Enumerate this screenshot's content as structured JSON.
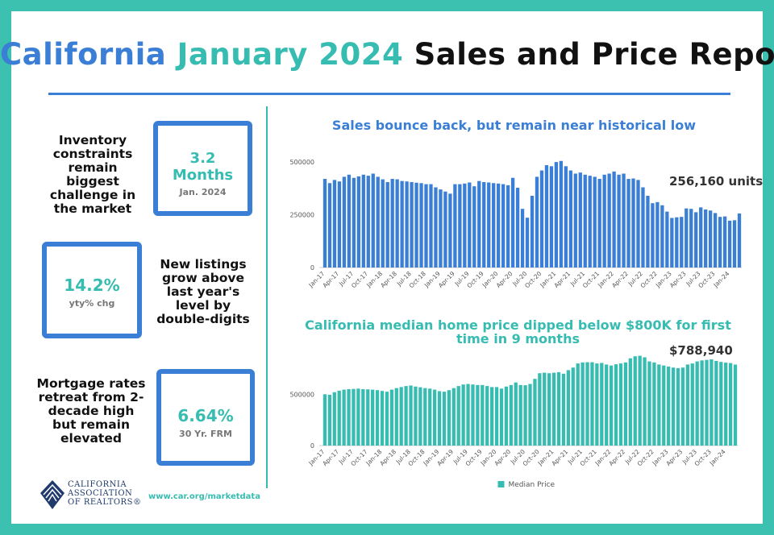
{
  "header": {
    "title_part1": "California",
    "title_part2": "January 2024",
    "title_part3": "Sales and Price Report"
  },
  "panels": {
    "inventory": {
      "text": "Inventory constraints remain biggest challenge in the market",
      "value": "3.2 Months",
      "sub": "Jan. 2024"
    },
    "listings": {
      "text": "New listings grow above last year's level by double-digits",
      "value": "14.2%",
      "sub": "yty% chg"
    },
    "mortgage": {
      "text": "Mortgage rates retreat from 2-decade high but remain elevated",
      "value": "6.64%",
      "sub": "30 Yr. FRM"
    }
  },
  "footer": {
    "url": "www.car.org/marketdata",
    "logo_line1": "CALIFORNIA",
    "logo_line2": "ASSOCIATION",
    "logo_line3": "OF REALTORS®"
  },
  "colors": {
    "blue": "#3a7fd5",
    "teal": "#36bcb0",
    "frame": "#3cc0b0"
  },
  "chart_data": [
    {
      "type": "bar",
      "title": "Sales bounce back, but remain near historical low",
      "annotation": "256,160 units",
      "ylim": [
        0,
        550000
      ],
      "yticks": [
        0,
        250000,
        500000
      ],
      "ytick_labels": [
        "0",
        "250000",
        "500000"
      ],
      "xtick_labels": [
        "Jan-17",
        "Apr-17",
        "Jul-17",
        "Oct-17",
        "Jan-18",
        "Apr-18",
        "Jul-18",
        "Oct-18",
        "Jan-19",
        "Apr-19",
        "Jul-19",
        "Oct-19",
        "Jan-20",
        "Apr-20",
        "Jul-20",
        "Oct-20",
        "Jan-21",
        "Apr-21",
        "Jul-21",
        "Oct-21",
        "Jan-22",
        "Apr-22",
        "Jul-22",
        "Oct-22",
        "Jan-23",
        "Apr-23",
        "Jul-23",
        "Oct-23",
        "Jan-24"
      ],
      "color": "#3a7fd5",
      "values": [
        420000,
        400000,
        415000,
        408000,
        430000,
        440000,
        425000,
        432000,
        440000,
        435000,
        445000,
        430000,
        418000,
        405000,
        420000,
        418000,
        410000,
        408000,
        405000,
        402000,
        400000,
        395000,
        395000,
        380000,
        370000,
        360000,
        350000,
        395000,
        395000,
        398000,
        403000,
        385000,
        410000,
        405000,
        403000,
        400000,
        398000,
        395000,
        390000,
        425000,
        378000,
        278000,
        236000,
        340000,
        430000,
        460000,
        485000,
        480000,
        500000,
        505000,
        480000,
        460000,
        445000,
        450000,
        440000,
        435000,
        430000,
        420000,
        440000,
        445000,
        455000,
        440000,
        445000,
        420000,
        422000,
        415000,
        380000,
        340000,
        305000,
        310000,
        295000,
        265000,
        235000,
        238000,
        240000,
        280000,
        278000,
        262000,
        285000,
        275000,
        270000,
        258000,
        240000,
        242000,
        222000,
        224000,
        256160
      ]
    },
    {
      "type": "bar",
      "title": "California median home price dipped below $800K for first time in 9 months",
      "annotation": "$788,940",
      "ylim": [
        0,
        950000
      ],
      "yticks": [
        0,
        500000
      ],
      "ytick_labels": [
        "0",
        "500000"
      ],
      "xtick_labels": [
        "Jan-17",
        "Apr-17",
        "Jul-17",
        "Oct-17",
        "Jan-18",
        "Apr-18",
        "Jul-18",
        "Oct-18",
        "Jan-19",
        "Apr-19",
        "Jul-19",
        "Oct-19",
        "Jan-20",
        "Apr-20",
        "Jul-20",
        "Oct-20",
        "Jan-21",
        "Apr-21",
        "Jul-21",
        "Oct-21",
        "Jan-22",
        "Apr-22",
        "Jul-22",
        "Oct-22",
        "Jan-23",
        "Apr-23",
        "Jul-23",
        "Oct-23",
        "Jan-24"
      ],
      "legend": "Median Price",
      "legend_position": "bottom",
      "color": "#36bcb0",
      "values": [
        500000,
        495000,
        520000,
        535000,
        545000,
        550000,
        552000,
        555000,
        550000,
        548000,
        545000,
        540000,
        532000,
        525000,
        545000,
        560000,
        570000,
        580000,
        585000,
        575000,
        568000,
        560000,
        555000,
        545000,
        530000,
        525000,
        540000,
        560000,
        580000,
        595000,
        600000,
        595000,
        590000,
        590000,
        580000,
        570000,
        570000,
        555000,
        575000,
        590000,
        615000,
        590000,
        588000,
        600000,
        650000,
        705000,
        710000,
        705000,
        710000,
        715000,
        700000,
        735000,
        760000,
        800000,
        810000,
        812000,
        812000,
        800000,
        805000,
        790000,
        780000,
        792000,
        800000,
        810000,
        850000,
        870000,
        875000,
        860000,
        820000,
        810000,
        790000,
        780000,
        770000,
        760000,
        755000,
        760000,
        790000,
        800000,
        820000,
        830000,
        835000,
        840000,
        825000,
        815000,
        808000,
        804000,
        788940
      ]
    }
  ]
}
